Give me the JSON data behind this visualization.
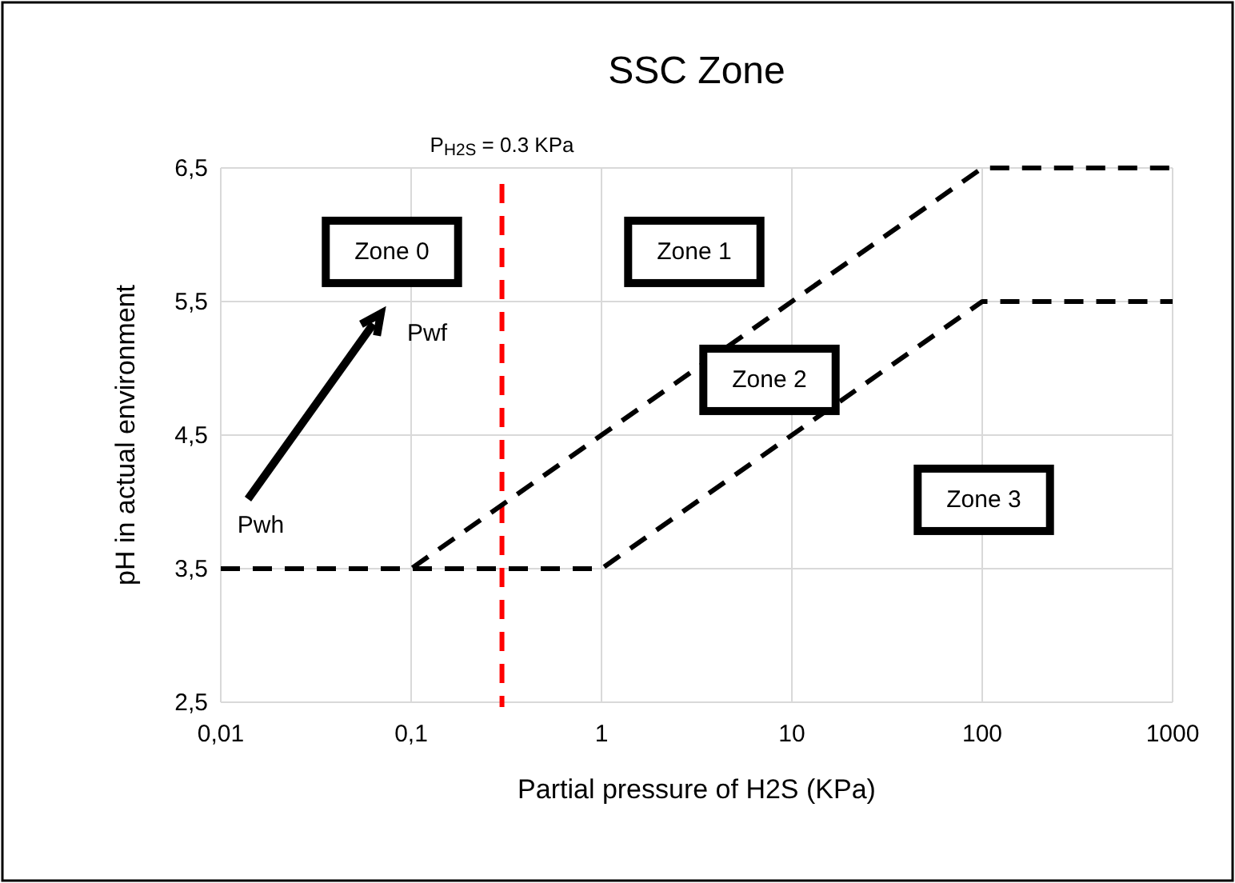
{
  "chart_data": {
    "type": "line",
    "title": "SSC Zone",
    "xlabel": "Partial pressure of H2S (KPa)",
    "ylabel": "pH in actual environment",
    "log": "x",
    "series": [
      {
        "color": "#000000",
        "x": [
          0.01,
          0.1,
          100,
          1000
        ],
        "values": [
          3.5,
          3.5,
          6.5,
          6.5
        ]
      },
      {
        "color": "#000000",
        "x": [
          0.01,
          1,
          100,
          1000
        ],
        "values": [
          3.5,
          3.5,
          5.5,
          5.5
        ]
      }
    ],
    "xlim": [
      0.01,
      1000
    ],
    "xticks": [
      {
        "value": 0.01,
        "label": "0,01"
      },
      {
        "value": 0.1,
        "label": "0,1"
      },
      1,
      10,
      100,
      1000
    ],
    "ylim": [
      2.5,
      6.5
    ],
    "yticks": [
      {
        "value": 2.5,
        "label": "2,5"
      },
      {
        "value": 3.5,
        "label": "3,5"
      },
      {
        "value": 4.5,
        "label": "4,5"
      },
      {
        "value": 5.5,
        "label": "5,5"
      },
      {
        "value": 6.5,
        "label": "6,5"
      }
    ],
    "ref_lines": [
      {
        "axis": "x",
        "value": 0.3,
        "label": "P$_{H2S}$ = 0.3 KPa",
        "color": "#ff0000",
        "line_style": "dashed"
      }
    ],
    "annotations": [
      "Zone 0",
      "Zone 1",
      "Zone 2",
      "Zone 3",
      "Pwh",
      "Pwf"
    ],
    "grid": true,
    "marker": "none",
    "line_style": "dashed"
  }
}
